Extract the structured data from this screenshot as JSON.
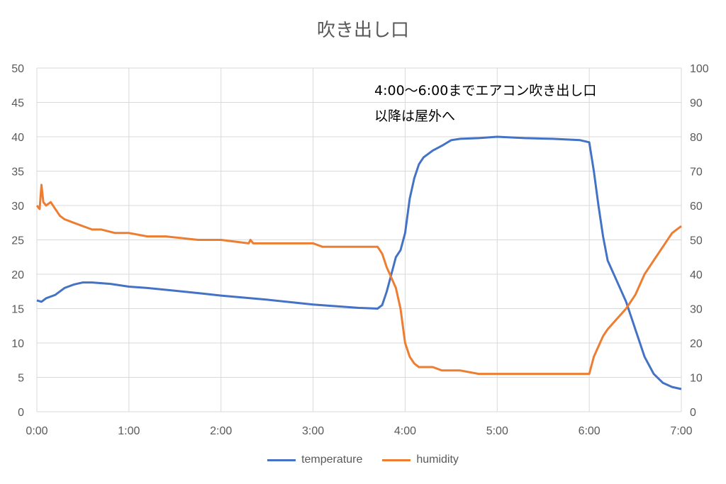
{
  "chart_data": {
    "type": "line",
    "title": "吹き出し口",
    "annotation": [
      "4:00～6:00までエアコン吹き出し口",
      "以降は屋外へ"
    ],
    "x_unit": "hours",
    "x_ticks": [
      "0:00",
      "1:00",
      "2:00",
      "3:00",
      "4:00",
      "5:00",
      "6:00",
      "7:00"
    ],
    "xlim": [
      0,
      7
    ],
    "y_left": {
      "ylim": [
        0,
        50
      ],
      "ticks": [
        "0",
        "5",
        "10",
        "15",
        "20",
        "25",
        "30",
        "35",
        "40",
        "45",
        "50"
      ]
    },
    "y_right": {
      "ylim": [
        0,
        100
      ],
      "ticks": [
        "0",
        "10",
        "20",
        "30",
        "40",
        "50",
        "60",
        "70",
        "80",
        "90",
        "100"
      ]
    },
    "grid": true,
    "legend_position": "bottom",
    "series": [
      {
        "name": "temperature",
        "axis": "left",
        "color": "#4472C4",
        "x": [
          0,
          0.05,
          0.1,
          0.2,
          0.3,
          0.4,
          0.5,
          0.6,
          0.7,
          0.8,
          1.0,
          1.2,
          1.5,
          1.8,
          2.0,
          2.5,
          3.0,
          3.5,
          3.7,
          3.75,
          3.8,
          3.85,
          3.9,
          3.95,
          4.0,
          4.05,
          4.1,
          4.15,
          4.2,
          4.3,
          4.4,
          4.5,
          4.6,
          4.8,
          5.0,
          5.3,
          5.6,
          5.9,
          6.0,
          6.05,
          6.1,
          6.15,
          6.2,
          6.3,
          6.4,
          6.5,
          6.6,
          6.7,
          6.8,
          6.9,
          7.0
        ],
        "y": [
          16.2,
          16.0,
          16.5,
          17.0,
          18.0,
          18.5,
          18.8,
          18.8,
          18.7,
          18.6,
          18.2,
          18.0,
          17.6,
          17.2,
          16.9,
          16.3,
          15.6,
          15.1,
          15.0,
          15.5,
          17.5,
          20.0,
          22.5,
          23.5,
          26.0,
          31.0,
          34.0,
          36.0,
          37.0,
          38.0,
          38.7,
          39.5,
          39.7,
          39.8,
          40.0,
          39.8,
          39.7,
          39.5,
          39.2,
          35.0,
          30.0,
          25.5,
          22.0,
          19.0,
          16.0,
          12.0,
          8.0,
          5.5,
          4.2,
          3.6,
          3.3
        ]
      },
      {
        "name": "humidity",
        "axis": "right",
        "color": "#ED7D31",
        "x": [
          0,
          0.03,
          0.05,
          0.07,
          0.1,
          0.15,
          0.2,
          0.25,
          0.3,
          0.4,
          0.5,
          0.6,
          0.7,
          0.85,
          0.9,
          1.0,
          1.2,
          1.4,
          1.75,
          2.0,
          2.3,
          2.32,
          2.35,
          2.5,
          3.0,
          3.1,
          3.5,
          3.7,
          3.75,
          3.8,
          3.85,
          3.9,
          3.95,
          4.0,
          4.05,
          4.1,
          4.15,
          4.2,
          4.3,
          4.4,
          4.5,
          4.6,
          4.8,
          4.9,
          5.0,
          5.5,
          6.0,
          6.05,
          6.1,
          6.15,
          6.2,
          6.3,
          6.4,
          6.5,
          6.6,
          6.7,
          6.8,
          6.9,
          7.0
        ],
        "y": [
          60.0,
          59.0,
          66.0,
          61.0,
          60.0,
          61.0,
          59.0,
          57.0,
          56.0,
          55.0,
          54.0,
          53.0,
          53.0,
          52.0,
          52.0,
          52.0,
          51.0,
          51.0,
          50.0,
          50.0,
          49.0,
          50.0,
          49.0,
          49.0,
          49.0,
          48.0,
          48.0,
          48.0,
          46.0,
          42.0,
          39.0,
          36.0,
          30.0,
          20.0,
          16.0,
          14.0,
          13.0,
          13.0,
          13.0,
          12.0,
          12.0,
          12.0,
          11.0,
          11.0,
          11.0,
          11.0,
          11.0,
          16.0,
          19.0,
          22.0,
          24.0,
          27.0,
          30.0,
          34.0,
          40.0,
          44.0,
          48.0,
          52.0,
          54.0
        ]
      }
    ]
  }
}
